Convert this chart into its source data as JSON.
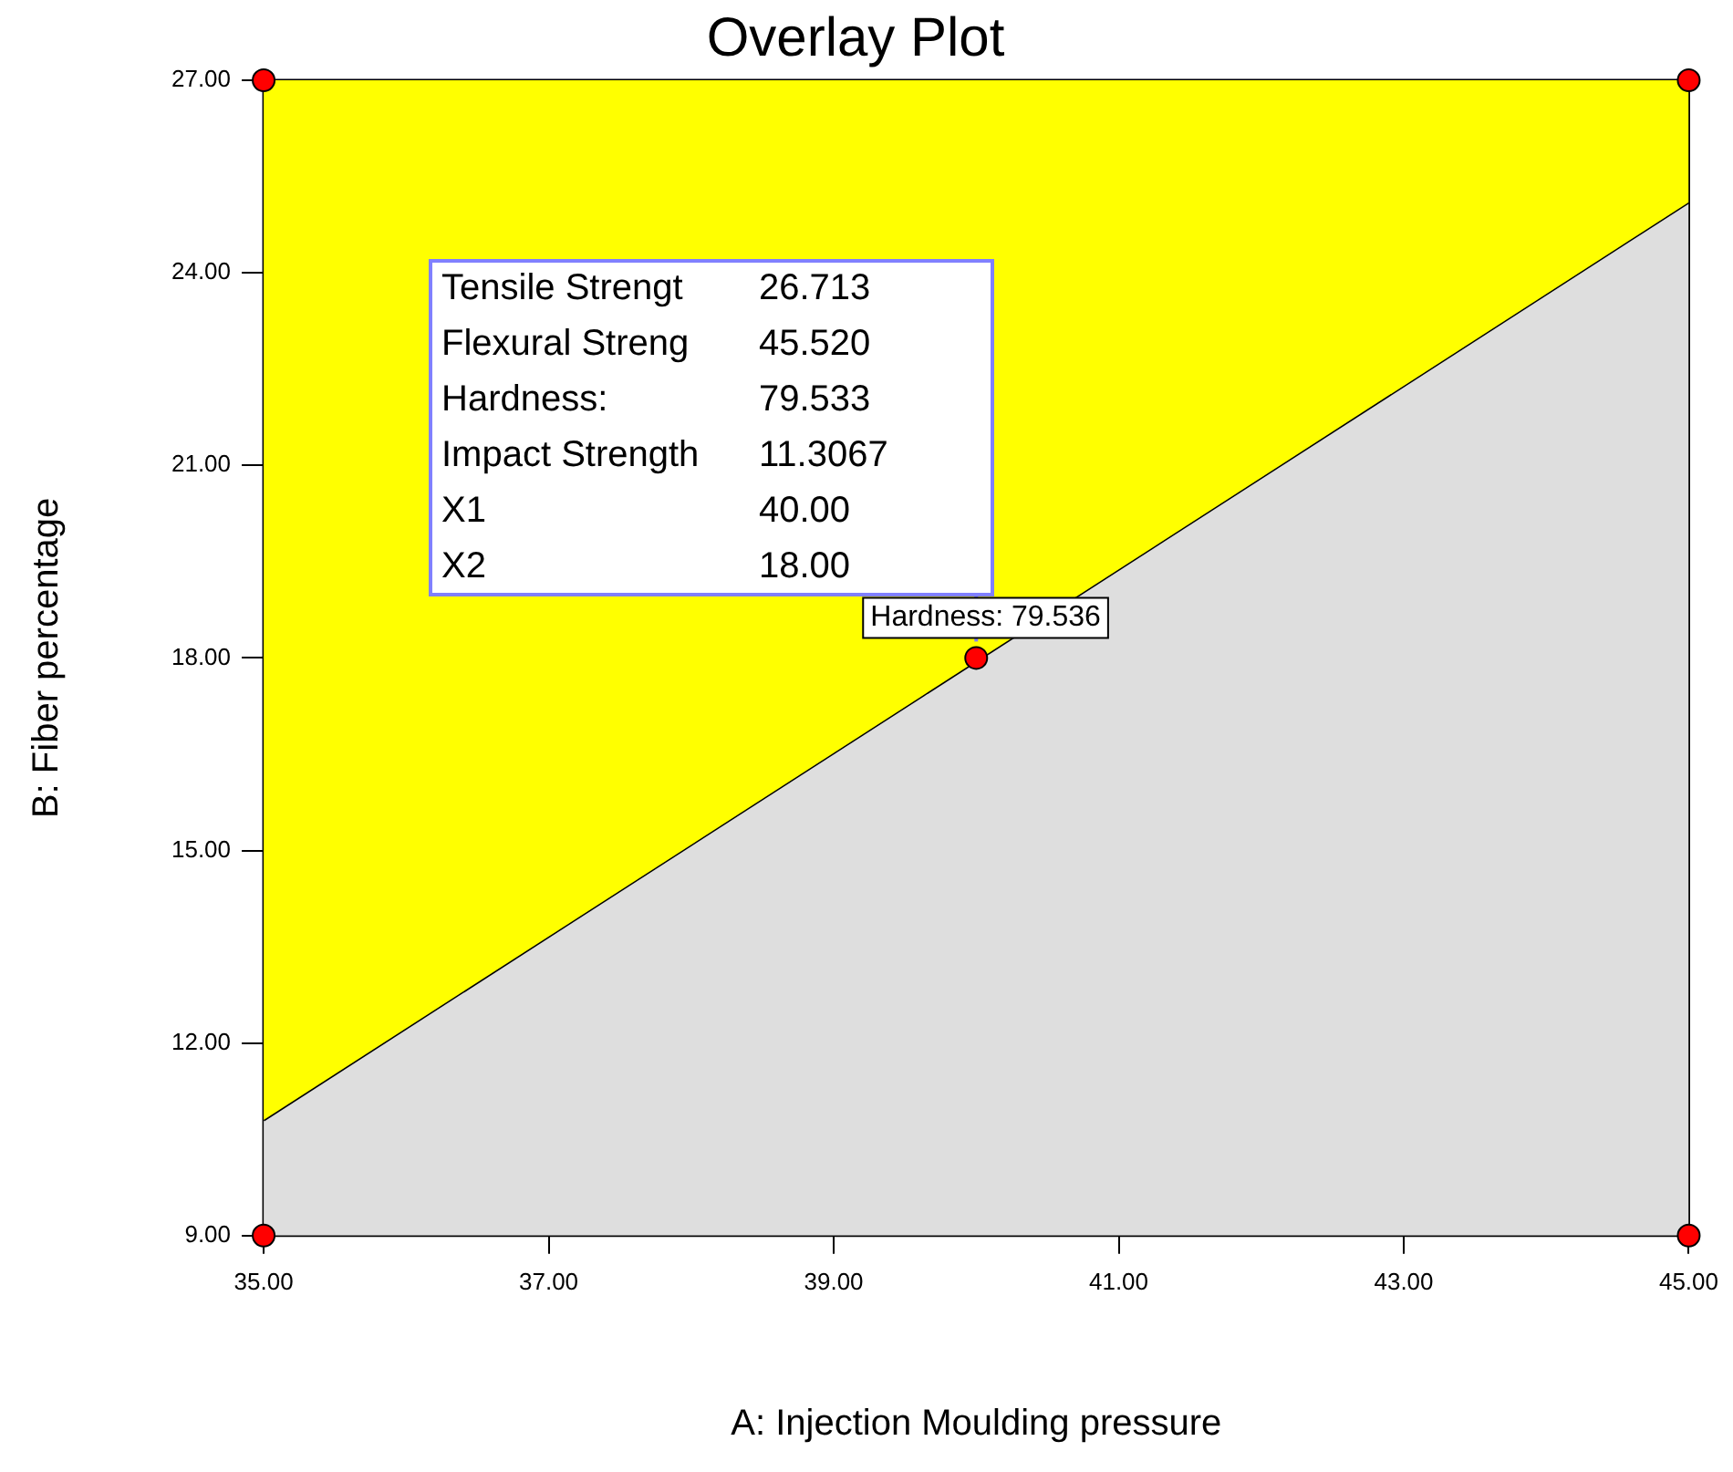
{
  "chart_data": {
    "type": "area",
    "title": "Overlay Plot",
    "xlabel": "A: Injection Moulding pressure",
    "ylabel": "B: Fiber percentage",
    "series": [
      {
        "type": "area",
        "color": "#dedede",
        "x": [
          35,
          45
        ],
        "values": [
          10.8,
          25.1
        ]
      },
      {
        "type": "area",
        "color": "#ffff00",
        "x": [
          35,
          45
        ],
        "values": [
          27,
          27
        ]
      },
      {
        "type": "scatter",
        "color": "#ff0000",
        "marker": "circle",
        "x": [
          35,
          35,
          45,
          45,
          40
        ],
        "values": [
          9,
          27,
          9,
          27,
          18
        ]
      }
    ],
    "xlim": [
      35,
      45
    ],
    "xticks": [
      {
        "value": 35,
        "label": "35.00"
      },
      {
        "value": 37,
        "label": "37.00"
      },
      {
        "value": 39,
        "label": "39.00"
      },
      {
        "value": 41,
        "label": "41.00"
      },
      {
        "value": 43,
        "label": "43.00"
      },
      {
        "value": 45,
        "label": "45.00"
      }
    ],
    "ylim": [
      9,
      27
    ],
    "yticks": [
      {
        "value": 9,
        "label": "9.00"
      },
      {
        "value": 12,
        "label": "12.00"
      },
      {
        "value": 15,
        "label": "15.00"
      },
      {
        "value": 18,
        "label": "18.00"
      },
      {
        "value": 21,
        "label": "21.00"
      },
      {
        "value": 24,
        "label": "24.00"
      },
      {
        "value": 27,
        "label": "27.00"
      }
    ],
    "legend": false,
    "annotations": [
      "Tensile Strengt 26.713",
      "Flexural Streng 45.520",
      "Hardness: 79.533",
      "Impact Strength 11.3067",
      "X1 40.00",
      "X2 18.00",
      {
        "text": "Hardness: 79.536",
        "x": 40,
        "y": 18
      }
    ]
  }
}
